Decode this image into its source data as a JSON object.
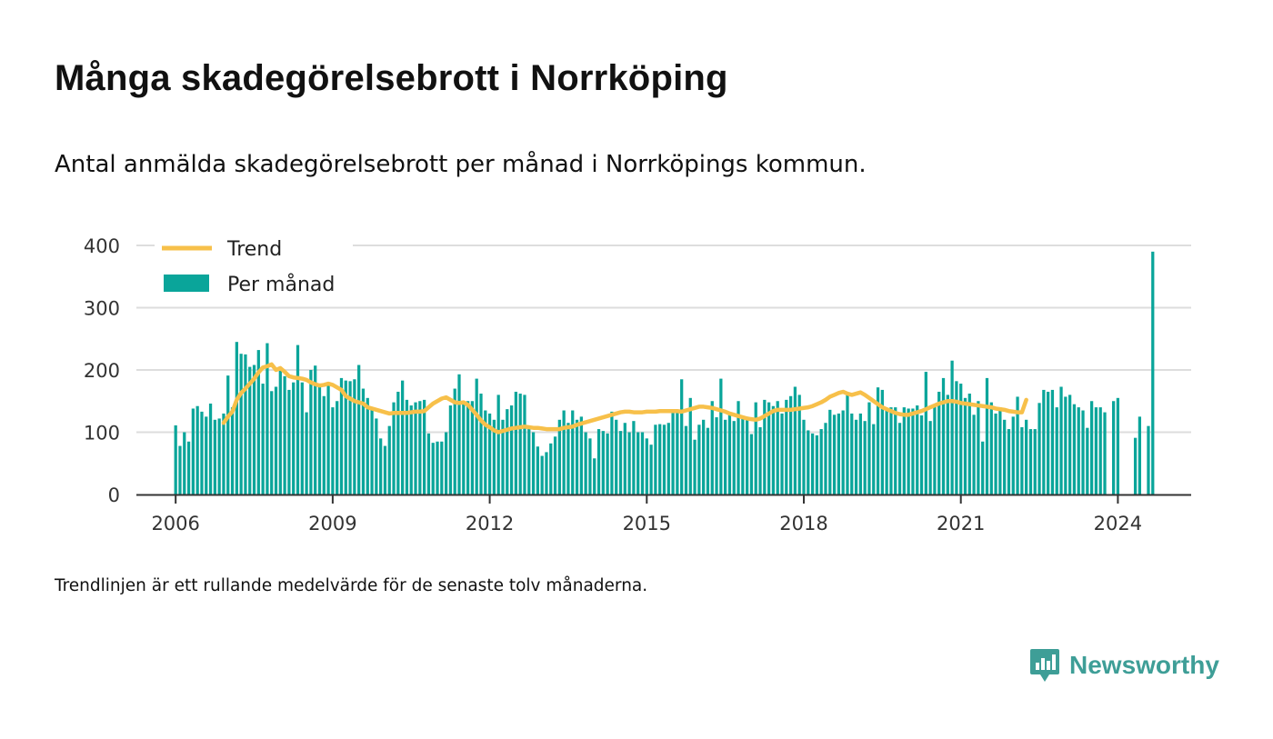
{
  "title": "Många skadegörelsebrott i Norrköping",
  "subtitle": "Antal anmälda skadegörelsebrott per månad i Norrköpings kommun.",
  "note": "Trendlinjen är ett rullande medelvärde för de senaste tolv månaderna.",
  "brand": "Newsworthy",
  "colors": {
    "bar": "#0aa59a",
    "trend": "#f7c04a",
    "grid": "#dddddd",
    "axis": "#333333",
    "brand": "#3e9e97"
  },
  "chart_data": {
    "type": "bar",
    "legend": {
      "placement": "top-left",
      "entries": [
        "Trend",
        "Per månad"
      ]
    },
    "ylim": [
      0,
      400
    ],
    "yticks": [
      0,
      100,
      200,
      300,
      400
    ],
    "xlim": [
      2005.25,
      2025.4
    ],
    "xticks": [
      2006,
      2009,
      2012,
      2015,
      2018,
      2021,
      2024
    ],
    "grid": "horizontal",
    "start": "2006-01",
    "series": [
      {
        "name": "Per månad",
        "type": "bar",
        "values": [
          111,
          78,
          100,
          85,
          138,
          142,
          133,
          125,
          146,
          120,
          122,
          130,
          191,
          140,
          245,
          226,
          225,
          205,
          208,
          232,
          178,
          243,
          166,
          173,
          200,
          190,
          168,
          180,
          240,
          180,
          132,
          200,
          207,
          175,
          158,
          180,
          140,
          150,
          187,
          183,
          182,
          185,
          208,
          170,
          155,
          137,
          122,
          90,
          78,
          110,
          148,
          165,
          183,
          152,
          143,
          148,
          150,
          152,
          98,
          83,
          85,
          85,
          100,
          143,
          170,
          193,
          148,
          150,
          150,
          186,
          162,
          135,
          130,
          120,
          160,
          120,
          137,
          143,
          165,
          162,
          160,
          110,
          100,
          77,
          62,
          68,
          82,
          93,
          120,
          135,
          115,
          135,
          120,
          125,
          100,
          90,
          58,
          105,
          102,
          98,
          133,
          120,
          102,
          115,
          100,
          118,
          100,
          100,
          90,
          80,
          112,
          113,
          112,
          115,
          132,
          132,
          185,
          110,
          155,
          88,
          112,
          120,
          107,
          150,
          124,
          186,
          120,
          130,
          118,
          150,
          125,
          125,
          97,
          148,
          108,
          152,
          148,
          142,
          150,
          130,
          152,
          158,
          173,
          160,
          120,
          103,
          98,
          95,
          105,
          115,
          136,
          128,
          130,
          135,
          162,
          130,
          120,
          130,
          118,
          148,
          113,
          172,
          168,
          138,
          140,
          140,
          115,
          140,
          138,
          138,
          143,
          127,
          197,
          118,
          145,
          165,
          187,
          160,
          215,
          182,
          178,
          155,
          162,
          128,
          150,
          85,
          187,
          148,
          130,
          140,
          120,
          105,
          125,
          157,
          108,
          120,
          105,
          105,
          147,
          168,
          165,
          168,
          140,
          173,
          157,
          160,
          145,
          140,
          135,
          107,
          150,
          140,
          140,
          132,
          null,
          150,
          155,
          null,
          null,
          null,
          91,
          125,
          null,
          110,
          390
        ]
      },
      {
        "name": "Trend",
        "type": "line",
        "start_index": 11,
        "values": [
          115,
          125,
          133,
          152,
          163,
          170,
          178,
          186,
          196,
          204,
          206,
          209,
          200,
          203,
          197,
          190,
          188,
          187,
          186,
          184,
          180,
          177,
          175,
          176,
          178,
          176,
          172,
          168,
          158,
          154,
          150,
          148,
          146,
          140,
          138,
          136,
          134,
          132,
          130,
          131,
          131,
          131,
          131,
          132,
          133,
          133,
          134,
          140,
          146,
          150,
          154,
          156,
          152,
          148,
          147,
          148,
          144,
          136,
          128,
          119,
          112,
          108,
          103,
          100,
          102,
          104,
          106,
          107,
          108,
          109,
          108,
          107,
          107,
          106,
          105,
          105,
          105,
          105,
          107,
          108,
          109,
          112,
          114,
          116,
          118,
          120,
          122,
          124,
          126,
          128,
          130,
          132,
          133,
          133,
          132,
          132,
          132,
          133,
          133,
          133,
          134,
          134,
          134,
          134,
          134,
          133,
          135,
          137,
          139,
          141,
          141,
          140,
          139,
          137,
          135,
          133,
          130,
          128,
          126,
          124,
          122,
          121,
          120,
          122,
          126,
          130,
          134,
          136,
          136,
          136,
          136,
          137,
          138,
          139,
          140,
          142,
          145,
          148,
          152,
          157,
          160,
          163,
          165,
          162,
          160,
          162,
          164,
          160,
          155,
          150,
          145,
          140,
          137,
          134,
          131,
          129,
          128,
          128,
          130,
          132,
          134,
          137,
          140,
          143,
          146,
          148,
          150,
          150,
          149,
          147,
          146,
          145,
          144,
          143,
          142,
          141,
          140,
          138,
          137,
          136,
          134,
          133,
          132,
          132,
          152
        ]
      }
    ]
  }
}
